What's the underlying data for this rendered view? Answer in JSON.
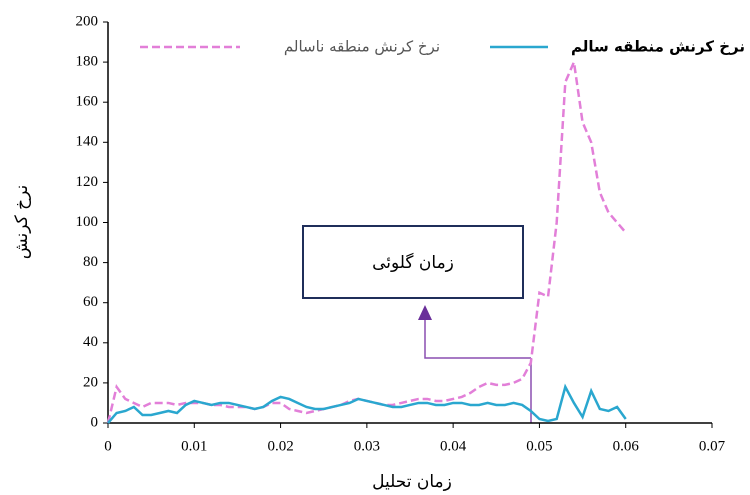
{
  "chart_data": {
    "type": "line",
    "x_label": "زمان تحلیل",
    "y_label": "نرخ کرنش",
    "annotation": "زمان گلوئی",
    "legend": "top",
    "x": [
      0,
      0.001,
      0.002,
      0.003,
      0.004,
      0.005,
      0.006,
      0.007,
      0.008,
      0.009,
      0.01,
      0.011,
      0.012,
      0.013,
      0.014,
      0.015,
      0.016,
      0.017,
      0.018,
      0.019,
      0.02,
      0.021,
      0.022,
      0.023,
      0.024,
      0.025,
      0.026,
      0.027,
      0.028,
      0.029,
      0.03,
      0.031,
      0.032,
      0.033,
      0.034,
      0.035,
      0.036,
      0.037,
      0.038,
      0.039,
      0.04,
      0.041,
      0.042,
      0.043,
      0.044,
      0.045,
      0.046,
      0.047,
      0.048,
      0.049,
      0.05,
      0.051,
      0.052,
      0.053,
      0.054,
      0.055,
      0.056,
      0.057,
      0.058,
      0.059,
      0.06
    ],
    "series": [
      {
        "name": "نرخ کرنش منطقه ناسالم",
        "color": "#e27fd8",
        "dashed": true,
        "values": [
          0,
          18,
          12,
          10,
          8,
          10,
          10,
          10,
          9,
          10,
          10,
          10,
          9,
          9,
          8,
          8,
          8,
          7,
          8,
          10,
          10,
          7,
          6,
          5,
          6,
          7,
          8,
          9,
          11,
          12,
          11,
          10,
          9,
          9,
          10,
          11,
          12,
          12,
          11,
          11,
          12,
          13,
          15,
          18,
          20,
          19,
          19,
          20,
          22,
          30,
          65,
          63,
          100,
          170,
          180,
          150,
          140,
          115,
          105,
          100,
          95
        ]
      },
      {
        "name": "نرخ کرنش منطقه سالم",
        "color": "#2aa7cf",
        "dashed": false,
        "values": [
          0,
          5,
          6,
          8,
          4,
          4,
          5,
          6,
          5,
          9,
          11,
          10,
          9,
          10,
          10,
          9,
          8,
          7,
          8,
          11,
          13,
          12,
          10,
          8,
          7,
          7,
          8,
          9,
          10,
          12,
          11,
          10,
          9,
          8,
          8,
          9,
          10,
          10,
          9,
          9,
          10,
          10,
          9,
          9,
          10,
          9,
          9,
          10,
          9,
          6,
          2,
          1,
          2,
          18,
          10,
          3,
          16,
          7,
          6,
          8,
          2
        ]
      }
    ],
    "xlim": [
      0,
      0.07
    ],
    "xticks": [
      0,
      0.01,
      0.02,
      0.03,
      0.04,
      0.05,
      0.06,
      0.07
    ],
    "ylim": [
      0,
      200
    ],
    "yticks": [
      0,
      20,
      40,
      60,
      80,
      100,
      120,
      140,
      160,
      180,
      200
    ]
  }
}
